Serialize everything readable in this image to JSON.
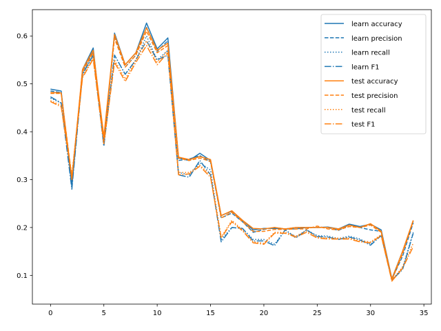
{
  "chart_data": {
    "type": "line",
    "title": "",
    "xlabel": "",
    "ylabel": "",
    "xlim": [
      -1.7,
      35.7
    ],
    "ylim": [
      0.04,
      0.655
    ],
    "xticks": [
      0,
      5,
      10,
      15,
      20,
      25,
      30,
      35
    ],
    "yticks": [
      0.1,
      0.2,
      0.3,
      0.4,
      0.5,
      0.6
    ],
    "ytick_labels": [
      "0.1",
      "0.2",
      "0.3",
      "0.4",
      "0.5",
      "0.6"
    ],
    "grid": false,
    "legend_position": "top-right",
    "x": [
      0,
      1,
      2,
      3,
      4,
      5,
      6,
      7,
      8,
      9,
      10,
      11,
      12,
      13,
      14,
      15,
      16,
      17,
      18,
      19,
      20,
      21,
      22,
      23,
      24,
      25,
      26,
      27,
      28,
      29,
      30,
      31,
      32,
      33,
      34
    ],
    "series": [
      {
        "name": "learn accuracy",
        "color": "#1f77b4",
        "dash": "solid",
        "values": [
          0.489,
          0.485,
          0.285,
          0.53,
          0.575,
          0.375,
          0.606,
          0.54,
          0.565,
          0.627,
          0.573,
          0.596,
          0.345,
          0.34,
          0.355,
          0.34,
          0.225,
          0.234,
          0.215,
          0.195,
          0.198,
          0.198,
          0.197,
          0.197,
          0.2,
          0.2,
          0.201,
          0.197,
          0.207,
          0.202,
          0.207,
          0.195,
          0.093,
          0.15,
          0.214
        ]
      },
      {
        "name": "learn precision",
        "color": "#1f77b4",
        "dash": "dashed",
        "values": [
          0.485,
          0.482,
          0.29,
          0.525,
          0.568,
          0.375,
          0.6,
          0.535,
          0.56,
          0.618,
          0.568,
          0.59,
          0.34,
          0.343,
          0.35,
          0.337,
          0.22,
          0.23,
          0.212,
          0.19,
          0.196,
          0.2,
          0.197,
          0.2,
          0.2,
          0.2,
          0.2,
          0.194,
          0.205,
          0.2,
          0.195,
          0.192,
          0.092,
          0.14,
          0.21
        ]
      },
      {
        "name": "learn recall",
        "color": "#1f77b4",
        "dash": "dotted",
        "values": [
          0.47,
          0.46,
          0.3,
          0.52,
          0.56,
          0.37,
          0.56,
          0.52,
          0.55,
          0.6,
          0.55,
          0.57,
          0.315,
          0.31,
          0.335,
          0.32,
          0.175,
          0.2,
          0.198,
          0.175,
          0.175,
          0.165,
          0.195,
          0.18,
          0.195,
          0.183,
          0.182,
          0.177,
          0.182,
          0.176,
          0.165,
          0.185,
          0.09,
          0.115,
          0.19
        ]
      },
      {
        "name": "learn F1",
        "color": "#1f77b4",
        "dash": "dashdot",
        "values": [
          0.473,
          0.46,
          0.28,
          0.52,
          0.56,
          0.37,
          0.56,
          0.52,
          0.55,
          0.59,
          0.55,
          0.56,
          0.31,
          0.305,
          0.34,
          0.31,
          0.17,
          0.2,
          0.198,
          0.172,
          0.172,
          0.162,
          0.195,
          0.178,
          0.195,
          0.181,
          0.18,
          0.175,
          0.18,
          0.174,
          0.163,
          0.183,
          0.09,
          0.112,
          0.188
        ]
      },
      {
        "name": "test accuracy",
        "color": "#ff7f0e",
        "dash": "solid",
        "values": [
          0.482,
          0.481,
          0.3,
          0.53,
          0.57,
          0.39,
          0.603,
          0.54,
          0.565,
          0.617,
          0.57,
          0.585,
          0.347,
          0.342,
          0.348,
          0.342,
          0.225,
          0.235,
          0.215,
          0.198,
          0.197,
          0.2,
          0.197,
          0.2,
          0.2,
          0.2,
          0.2,
          0.197,
          0.205,
          0.2,
          0.208,
          0.192,
          0.092,
          0.15,
          0.215
        ]
      },
      {
        "name": "test precision",
        "color": "#ff7f0e",
        "dash": "dashed",
        "values": [
          0.48,
          0.48,
          0.305,
          0.525,
          0.565,
          0.385,
          0.595,
          0.535,
          0.56,
          0.61,
          0.565,
          0.58,
          0.345,
          0.34,
          0.345,
          0.338,
          0.22,
          0.232,
          0.212,
          0.192,
          0.192,
          0.196,
          0.196,
          0.197,
          0.197,
          0.203,
          0.197,
          0.195,
          0.202,
          0.2,
          0.205,
          0.19,
          0.09,
          0.145,
          0.213
        ]
      },
      {
        "name": "test recall",
        "color": "#ff7f0e",
        "dash": "dotted",
        "values": [
          0.465,
          0.455,
          0.31,
          0.515,
          0.555,
          0.38,
          0.55,
          0.51,
          0.55,
          0.59,
          0.545,
          0.57,
          0.315,
          0.315,
          0.33,
          0.31,
          0.18,
          0.215,
          0.195,
          0.17,
          0.167,
          0.19,
          0.19,
          0.182,
          0.193,
          0.18,
          0.178,
          0.178,
          0.178,
          0.172,
          0.17,
          0.185,
          0.089,
          0.118,
          0.167
        ]
      },
      {
        "name": "test F1",
        "color": "#ff7f0e",
        "dash": "dashdot",
        "values": [
          0.463,
          0.452,
          0.305,
          0.513,
          0.552,
          0.375,
          0.545,
          0.505,
          0.545,
          0.58,
          0.54,
          0.565,
          0.31,
          0.312,
          0.328,
          0.305,
          0.178,
          0.212,
          0.193,
          0.168,
          0.165,
          0.188,
          0.188,
          0.18,
          0.19,
          0.178,
          0.176,
          0.176,
          0.176,
          0.17,
          0.168,
          0.183,
          0.088,
          0.115,
          0.16
        ]
      }
    ]
  }
}
